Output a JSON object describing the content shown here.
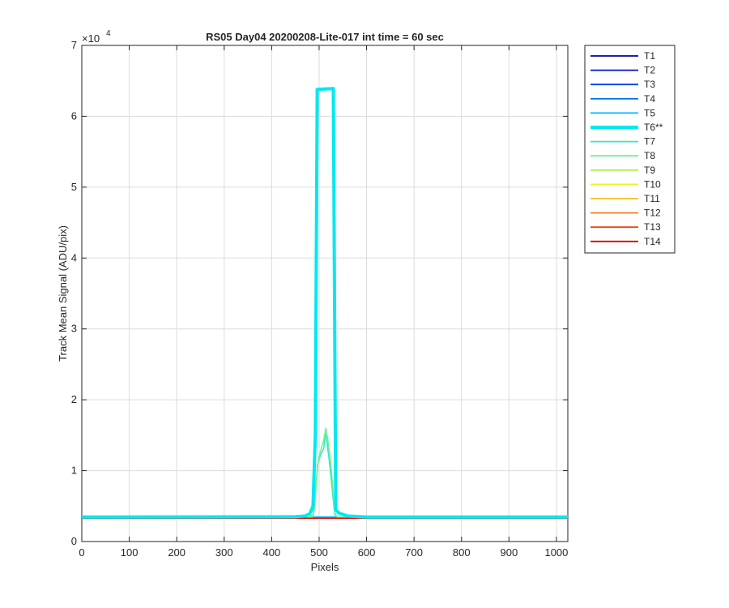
{
  "chart_data": {
    "type": "line",
    "title": "RS05 Day04 20200208-Lite-017 int time = 60 sec",
    "xlabel": "Pixels",
    "ylabel": "Track Mean Signal (ADU/pix)",
    "xlim": [
      0,
      1024
    ],
    "ylim": [
      0,
      70000
    ],
    "xticks": [
      0,
      100,
      200,
      300,
      400,
      500,
      600,
      700,
      800,
      900,
      1000
    ],
    "yticks": [
      0,
      1,
      2,
      3,
      4,
      5,
      6,
      7
    ],
    "y_exponent_label": "×10",
    "y_exponent_power": "4",
    "grid": true,
    "legend_position": "outside-right",
    "series": [
      {
        "name": "T1",
        "color": "#0000A6",
        "baseline": 3400
      },
      {
        "name": "T2",
        "color": "#0010D8",
        "baseline": 3400
      },
      {
        "name": "T3",
        "color": "#0040F0",
        "baseline": 3400
      },
      {
        "name": "T4",
        "color": "#0078E8",
        "baseline": 3400
      },
      {
        "name": "T5",
        "color": "#00B4FF",
        "baseline": 3450
      },
      {
        "name": "T6**",
        "color": "#00E8F0",
        "baseline": 3450,
        "highlight": true,
        "points": [
          [
            0,
            3450
          ],
          [
            450,
            3500
          ],
          [
            470,
            3600
          ],
          [
            480,
            3900
          ],
          [
            487,
            5000
          ],
          [
            492,
            15000
          ],
          [
            496,
            63800
          ],
          [
            530,
            63900
          ],
          [
            535,
            4500
          ],
          [
            542,
            4000
          ],
          [
            560,
            3600
          ],
          [
            600,
            3450
          ],
          [
            1024,
            3450
          ]
        ]
      },
      {
        "name": "T7",
        "color": "#30E8C0",
        "baseline": 3400,
        "points": [
          [
            0,
            3400
          ],
          [
            480,
            3450
          ],
          [
            487,
            3800
          ],
          [
            492,
            7000
          ],
          [
            497,
            11000
          ],
          [
            503,
            12200
          ],
          [
            510,
            13200
          ],
          [
            513,
            15300
          ],
          [
            517,
            13800
          ],
          [
            522,
            11000
          ],
          [
            528,
            7000
          ],
          [
            533,
            3800
          ],
          [
            540,
            3450
          ],
          [
            1024,
            3400
          ]
        ]
      },
      {
        "name": "T8",
        "color": "#70F090",
        "baseline": 3400,
        "points": [
          [
            0,
            3400
          ],
          [
            486,
            3450
          ],
          [
            490,
            4500
          ],
          [
            494,
            8000
          ],
          [
            498,
            11500
          ],
          [
            504,
            13000
          ],
          [
            510,
            14400
          ],
          [
            514,
            16000
          ],
          [
            518,
            14500
          ],
          [
            524,
            11500
          ],
          [
            529,
            7500
          ],
          [
            533,
            4000
          ],
          [
            538,
            3450
          ],
          [
            1024,
            3400
          ]
        ]
      },
      {
        "name": "T9",
        "color": "#B0F050",
        "baseline": 3350
      },
      {
        "name": "T10",
        "color": "#F0F020",
        "baseline": 3350
      },
      {
        "name": "T11",
        "color": "#F0C020",
        "baseline": 3300
      },
      {
        "name": "T12",
        "color": "#F08020",
        "baseline": 3300
      },
      {
        "name": "T13",
        "color": "#F04010",
        "baseline": 3300
      },
      {
        "name": "T14",
        "color": "#E00000",
        "baseline": 3300
      }
    ]
  }
}
